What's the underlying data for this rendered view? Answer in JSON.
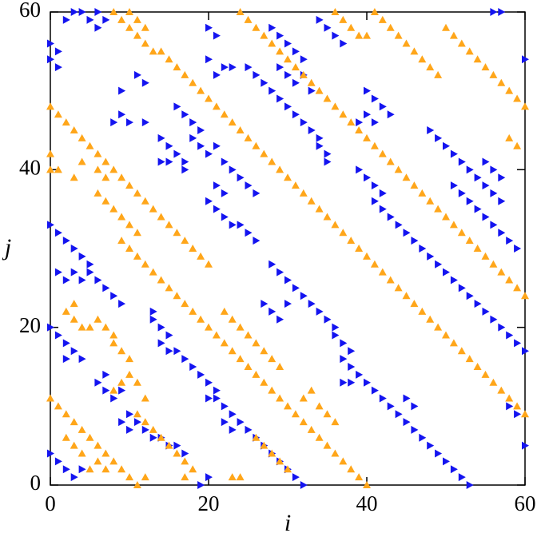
{
  "chart_data": {
    "type": "scatter",
    "x_label": "i",
    "y_label": "j",
    "xlim": [
      0,
      60
    ],
    "ylim": [
      0,
      60
    ],
    "xticks": [
      0,
      20,
      40,
      60
    ],
    "yticks": [
      0,
      20,
      40,
      60
    ],
    "series": [
      {
        "color": "#1414f0",
        "marker": "triangle-right",
        "x": [
          0,
          0,
          1,
          1,
          2,
          3,
          4,
          5,
          6,
          7,
          6,
          8,
          9,
          10,
          12,
          11,
          12,
          9,
          14,
          15,
          16,
          17,
          16,
          17,
          18,
          19,
          18,
          19,
          20,
          21,
          22,
          23,
          24,
          25,
          26,
          17,
          14,
          15,
          21,
          22,
          20,
          21,
          22,
          23,
          24,
          25,
          26,
          22,
          23,
          21,
          20,
          25,
          26,
          27,
          28,
          29,
          30,
          31,
          32,
          33,
          34,
          34,
          35,
          35,
          29,
          30,
          31,
          32,
          33,
          28,
          29,
          30,
          31,
          32,
          34,
          35,
          36,
          37,
          20,
          21,
          40,
          41,
          42,
          43,
          40,
          41,
          39,
          48,
          49,
          50,
          51,
          52,
          53,
          54,
          55,
          56,
          57,
          51,
          52,
          53,
          54,
          55,
          56,
          57,
          58,
          59,
          55,
          56,
          57,
          39,
          40,
          41,
          42,
          41,
          42,
          43,
          44,
          45,
          46,
          47,
          48,
          49,
          50,
          51,
          52,
          53,
          54,
          55,
          56,
          57,
          58,
          59,
          60,
          28,
          29,
          30,
          31,
          32,
          33,
          34,
          35,
          36,
          36,
          37,
          38,
          37,
          38,
          39,
          40,
          41,
          42,
          43,
          44,
          45,
          46,
          47,
          48,
          49,
          50,
          51,
          52,
          53,
          37,
          38,
          45,
          46,
          27,
          28,
          29,
          30,
          58,
          59,
          60,
          60,
          57,
          56,
          0,
          1,
          2,
          3,
          4,
          5,
          3,
          4,
          5,
          6,
          7,
          8,
          9,
          1,
          2,
          13,
          13,
          14,
          15,
          14,
          15,
          16,
          17,
          18,
          19,
          20,
          21,
          20,
          21,
          22,
          23,
          22,
          23,
          24,
          25,
          26,
          27,
          28,
          29,
          30,
          31,
          32,
          0,
          1,
          2,
          2,
          3,
          4,
          7,
          6,
          7,
          8,
          9,
          10,
          9,
          10,
          11,
          12,
          13,
          14,
          15,
          16,
          17,
          0,
          1,
          2,
          3,
          4,
          19,
          20
        ],
        "values": [
          56,
          54,
          55,
          53,
          59,
          60,
          60,
          59,
          60,
          59,
          58,
          46,
          47,
          46,
          46,
          52,
          51,
          50,
          44,
          43,
          42,
          41,
          48,
          47,
          46,
          45,
          44,
          43,
          42,
          43,
          41,
          40,
          39,
          38,
          37,
          40,
          41,
          41,
          38,
          37,
          36,
          35,
          34,
          33,
          33,
          32,
          31,
          53,
          53,
          52,
          54,
          53,
          52,
          51,
          50,
          49,
          48,
          47,
          46,
          45,
          44,
          43,
          42,
          41,
          53,
          52,
          51,
          52,
          50,
          58,
          57,
          56,
          55,
          54,
          59,
          58,
          57,
          56,
          58,
          57,
          50,
          49,
          48,
          47,
          47,
          46,
          46,
          45,
          44,
          43,
          42,
          41,
          40,
          39,
          38,
          37,
          36,
          38,
          37,
          36,
          35,
          34,
          33,
          32,
          31,
          30,
          41,
          40,
          39,
          40,
          39,
          38,
          37,
          36,
          35,
          34,
          33,
          32,
          31,
          30,
          29,
          28,
          27,
          26,
          25,
          24,
          23,
          22,
          21,
          20,
          19,
          18,
          17,
          28,
          27,
          26,
          25,
          24,
          23,
          22,
          21,
          20,
          19,
          18,
          17,
          16,
          15,
          14,
          13,
          12,
          11,
          10,
          9,
          8,
          7,
          6,
          5,
          4,
          3,
          2,
          1,
          0,
          13,
          13,
          11,
          10,
          23,
          22,
          21,
          23,
          10,
          9,
          5,
          54,
          60,
          60,
          33,
          32,
          31,
          30,
          29,
          28,
          27,
          26,
          27,
          26,
          25,
          24,
          23,
          27,
          26,
          22,
          21,
          20,
          19,
          18,
          17,
          17,
          16,
          15,
          14,
          13,
          12,
          11,
          11,
          10,
          9,
          8,
          7,
          8,
          7,
          6,
          5,
          4,
          3,
          2,
          1,
          0,
          20,
          19,
          18,
          16,
          17,
          16,
          14,
          13,
          12,
          11,
          12,
          9,
          8,
          7,
          8,
          7,
          6,
          6,
          5,
          5,
          4,
          4,
          3,
          2,
          1,
          2,
          0,
          1
        ]
      },
      {
        "color": "#ffa61a",
        "marker": "triangle-up",
        "x": [
          0,
          1,
          2,
          3,
          4,
          2,
          3,
          4,
          5,
          6,
          7,
          8,
          9,
          10,
          11,
          12,
          6,
          7,
          5,
          8,
          9,
          10,
          11,
          12,
          11,
          12,
          13,
          14,
          15,
          16,
          17,
          18,
          17,
          2,
          3,
          4,
          5,
          6,
          7,
          8,
          8,
          9,
          10,
          3,
          0,
          1,
          2,
          3,
          4,
          5,
          6,
          7,
          8,
          9,
          10,
          11,
          12,
          13,
          14,
          15,
          16,
          17,
          18,
          19,
          20,
          0,
          0,
          1,
          3,
          4,
          6,
          7,
          6,
          7,
          8,
          9,
          10,
          11,
          9,
          10,
          11,
          12,
          13,
          14,
          15,
          16,
          17,
          18,
          19,
          20,
          21,
          22,
          23,
          24,
          25,
          26,
          27,
          28,
          29,
          30,
          31,
          32,
          33,
          34,
          35,
          36,
          37,
          38,
          39,
          40,
          8,
          9,
          10,
          11,
          12,
          13,
          14,
          15,
          16,
          17,
          18,
          19,
          20,
          21,
          22,
          23,
          24,
          25,
          26,
          27,
          28,
          29,
          30,
          31,
          32,
          33,
          34,
          35,
          36,
          37,
          38,
          39,
          40,
          41,
          42,
          43,
          44,
          45,
          46,
          47,
          48,
          49,
          50,
          51,
          52,
          53,
          54,
          55,
          56,
          57,
          58,
          59,
          60,
          10,
          11,
          12,
          24,
          25,
          26,
          27,
          28,
          29,
          30,
          31,
          32,
          33,
          34,
          35,
          36,
          37,
          38,
          39,
          40,
          41,
          42,
          43,
          44,
          45,
          46,
          47,
          48,
          49,
          50,
          51,
          52,
          53,
          54,
          55,
          56,
          57,
          58,
          59,
          60,
          36,
          37,
          38,
          39,
          40,
          41,
          42,
          43,
          44,
          45,
          46,
          47,
          48,
          49,
          50,
          51,
          52,
          53,
          54,
          55,
          56,
          57,
          58,
          59,
          60,
          58,
          59,
          26,
          27,
          28,
          29,
          30,
          23,
          24,
          32,
          33,
          34,
          35,
          36,
          22,
          23,
          24,
          25,
          26,
          27,
          28,
          29
        ],
        "values": [
          11,
          10,
          9,
          8,
          7,
          6,
          5,
          4,
          6,
          5,
          4,
          3,
          2,
          1,
          0,
          1,
          3,
          2,
          2,
          12,
          13,
          14,
          13,
          11,
          9,
          8,
          7,
          6,
          5,
          4,
          3,
          2,
          1,
          22,
          21,
          20,
          20,
          21,
          20,
          19,
          18,
          17,
          16,
          23,
          48,
          47,
          46,
          45,
          44,
          43,
          42,
          41,
          40,
          39,
          38,
          37,
          36,
          35,
          34,
          33,
          32,
          31,
          30,
          29,
          28,
          42,
          40,
          40,
          39,
          41,
          40,
          39,
          37,
          36,
          35,
          34,
          33,
          32,
          31,
          30,
          29,
          28,
          27,
          26,
          25,
          24,
          23,
          22,
          21,
          20,
          19,
          18,
          17,
          16,
          15,
          14,
          13,
          12,
          11,
          10,
          9,
          8,
          7,
          6,
          5,
          4,
          3,
          2,
          1,
          0,
          60,
          59,
          58,
          57,
          56,
          55,
          55,
          54,
          53,
          52,
          51,
          50,
          49,
          48,
          47,
          46,
          45,
          44,
          43,
          42,
          41,
          40,
          39,
          38,
          37,
          36,
          35,
          34,
          33,
          32,
          31,
          30,
          29,
          28,
          27,
          26,
          25,
          24,
          23,
          22,
          21,
          20,
          19,
          18,
          17,
          16,
          15,
          14,
          13,
          12,
          11,
          10,
          9,
          60,
          59,
          58,
          60,
          59,
          58,
          57,
          56,
          55,
          54,
          53,
          52,
          51,
          50,
          49,
          48,
          47,
          46,
          45,
          44,
          43,
          42,
          41,
          40,
          39,
          38,
          37,
          36,
          35,
          34,
          33,
          32,
          31,
          30,
          29,
          28,
          27,
          26,
          25,
          24,
          60,
          59,
          58,
          57,
          57,
          60,
          59,
          58,
          57,
          56,
          55,
          54,
          53,
          52,
          58,
          57,
          56,
          55,
          54,
          53,
          52,
          51,
          50,
          49,
          48,
          44,
          43,
          6,
          5,
          4,
          3,
          2,
          1,
          1,
          11,
          12,
          10,
          9,
          8,
          22,
          21,
          20,
          19,
          18,
          17,
          16,
          15
        ]
      }
    ]
  }
}
